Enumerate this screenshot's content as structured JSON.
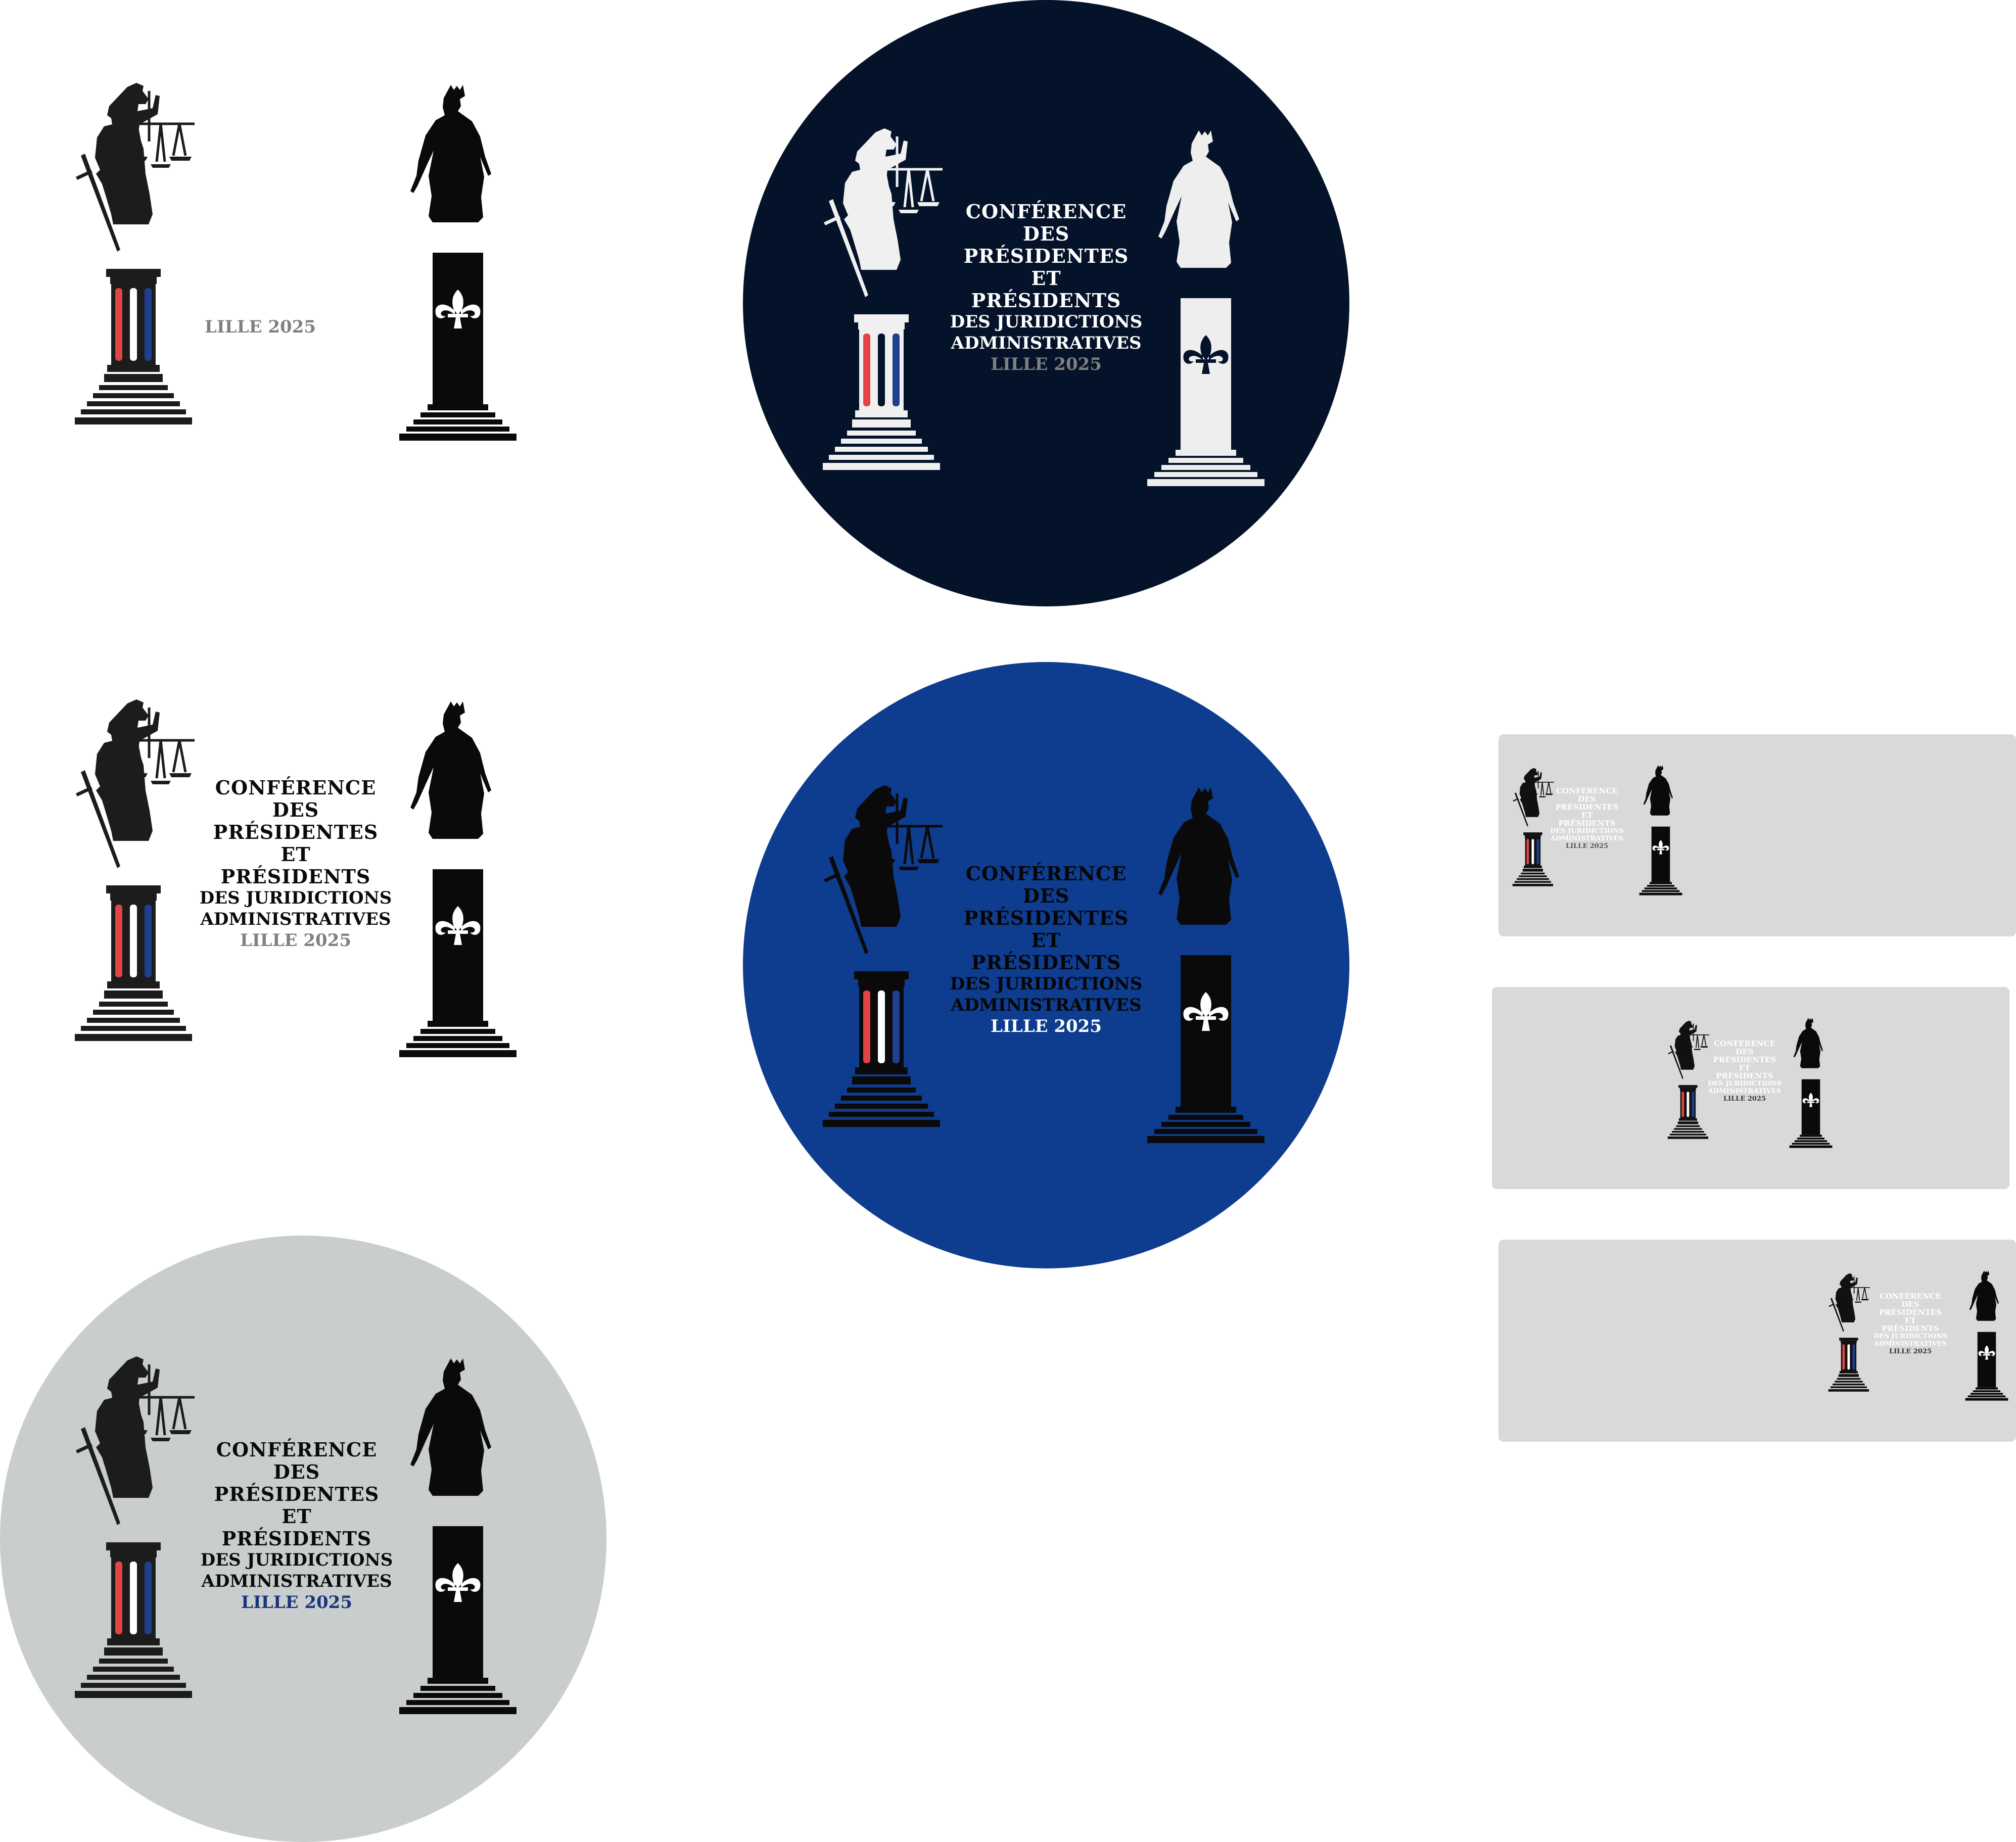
{
  "colors": {
    "navy": "#04132a",
    "royal_blue": "#0e3c8e",
    "light_gray_circle": "#c9cdcd",
    "card_gray": "#d9d9d9",
    "flag_red": "#e04444",
    "flag_blue": "#1f3f8f",
    "year_gray": "#808080",
    "year_blue": "#17357a"
  },
  "text": {
    "conference": "CONFÉRENCE",
    "des": "DES",
    "presidentes": "PRÉSIDENTES",
    "et": "ET",
    "presidents": "PRÉSIDENTS",
    "des_juridictions": "DES JURIDICTIONS",
    "administratives": "ADMINISTRATIVES",
    "year": "LILLE 2025"
  },
  "icons": [
    "justice-statue-icon",
    "scales-icon",
    "sword-icon",
    "queen-statue-icon",
    "fleur-de-lis-icon",
    "stepped-plinth-icon"
  ],
  "variants": [
    {
      "name": "white-short",
      "background": "white",
      "text": "year only"
    },
    {
      "name": "navy-circle",
      "background": "navy",
      "figures": "white"
    },
    {
      "name": "white-full",
      "background": "white",
      "figures": "black"
    },
    {
      "name": "blue-circle",
      "background": "royal blue",
      "figures": "black"
    },
    {
      "name": "gray-circle",
      "background": "light gray",
      "figures": "black"
    },
    {
      "name": "gray-card-left",
      "background": "light gray",
      "align": "left"
    },
    {
      "name": "gray-card-center",
      "background": "light gray",
      "align": "center"
    },
    {
      "name": "gray-card-right",
      "background": "light gray",
      "align": "right"
    }
  ]
}
